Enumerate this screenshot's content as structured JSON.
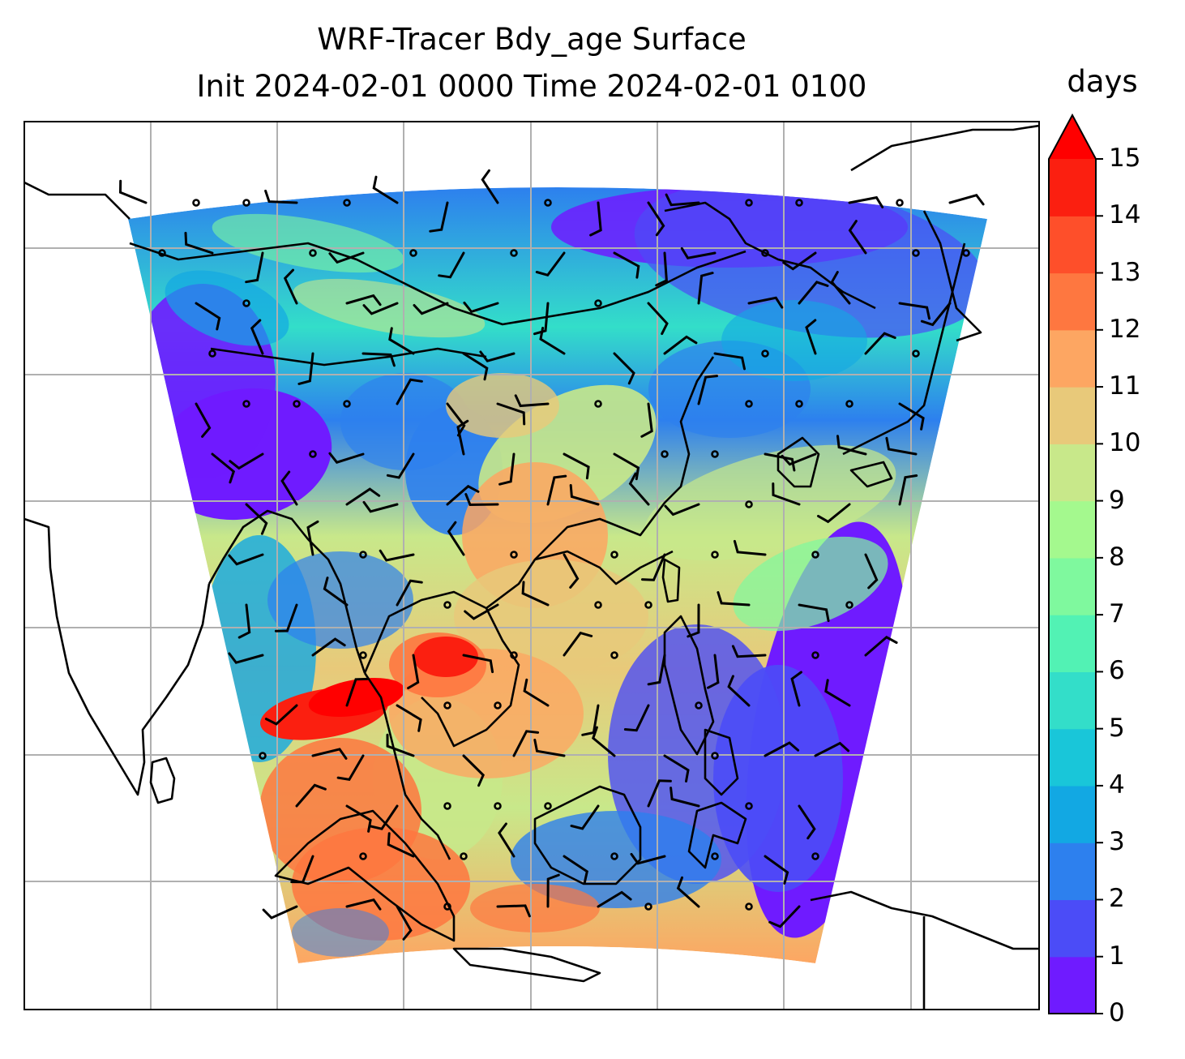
{
  "title": {
    "line1": "WRF-Tracer Bdy_age Surface",
    "line2": "Init 2024-02-01 0000 Time 2024-02-01 0100"
  },
  "colorbar": {
    "unit": "days",
    "ticks": [
      "0",
      "1",
      "2",
      "3",
      "4",
      "5",
      "6",
      "7",
      "8",
      "9",
      "10",
      "11",
      "12",
      "13",
      "14",
      "15"
    ],
    "extend": "max",
    "colors": [
      "#6f1bff",
      "#4b4cf7",
      "#2d80ee",
      "#12a8e3",
      "#19c6d9",
      "#33dec9",
      "#52f2b4",
      "#7ff99e",
      "#a4f98e",
      "#c8e88a",
      "#e8c97a",
      "#fda662",
      "#fe7740",
      "#fe4f2a",
      "#fb1f10"
    ],
    "extend_color": "#ff0000"
  },
  "map": {
    "gridlines": true,
    "gridline_color": "#b0b0b0",
    "coastline_color": "#000000",
    "domain_description_hidden": false
  }
}
